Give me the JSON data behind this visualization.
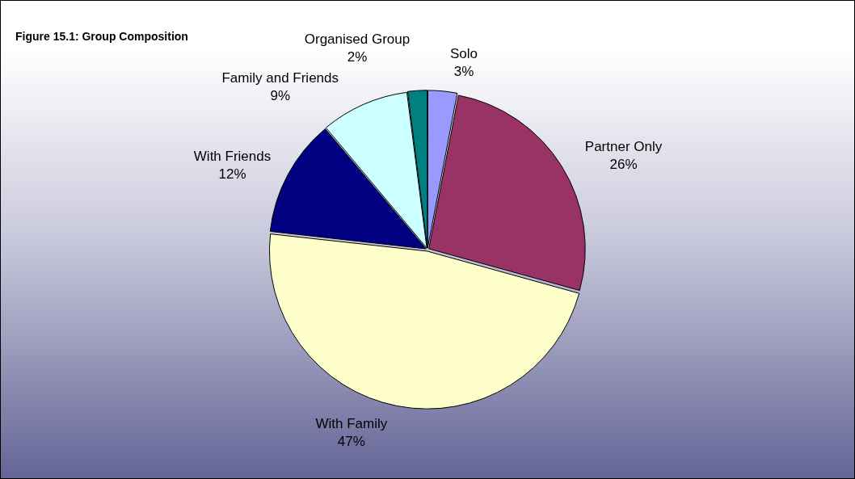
{
  "chart_data": {
    "type": "pie",
    "title": "Figure 15.1: Group Composition",
    "categories": [
      "Solo",
      "Partner Only",
      "With Family",
      "With Friends",
      "Family and Friends",
      "Organised Group"
    ],
    "values": [
      3,
      26,
      47,
      12,
      9,
      2
    ],
    "value_labels": [
      "3%",
      "26%",
      "47%",
      "12%",
      "9%",
      "2%"
    ],
    "colors": [
      "#9999ff",
      "#993366",
      "#ffffcc",
      "#000080",
      "#ccffff",
      "#008080"
    ],
    "legend": false
  }
}
